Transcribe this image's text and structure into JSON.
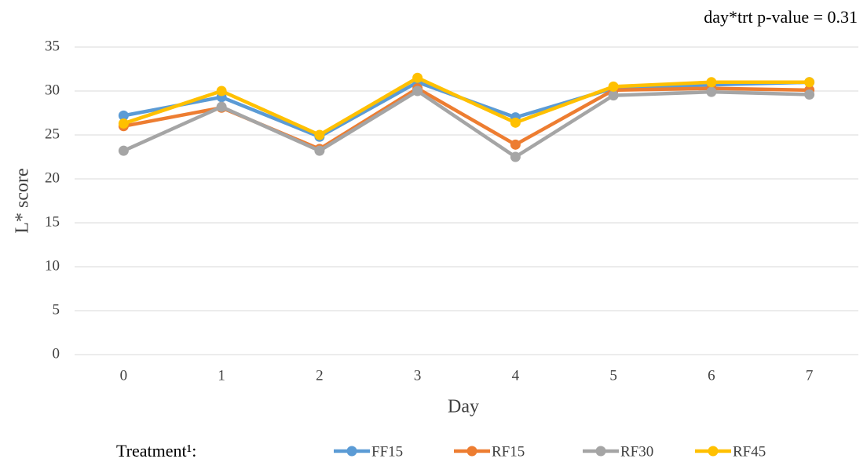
{
  "chart_data": {
    "type": "line",
    "annotation": "day*trt p-value = 0.31",
    "x_label": "Day",
    "y_label": "L* score",
    "legend_title": "Treatment¹:",
    "categories": [
      "0",
      "1",
      "2",
      "3",
      "4",
      "5",
      "6",
      "7"
    ],
    "series": [
      {
        "name": "FF15",
        "color": "#5b9bd5",
        "values": [
          27.2,
          29.3,
          24.8,
          31.0,
          27.0,
          30.3,
          30.7,
          31.0
        ]
      },
      {
        "name": "RF15",
        "color": "#ed7d31",
        "values": [
          26.0,
          28.1,
          23.4,
          30.3,
          23.9,
          30.1,
          30.3,
          30.1
        ]
      },
      {
        "name": "RF30",
        "color": "#a5a5a5",
        "values": [
          23.2,
          28.2,
          23.2,
          30.0,
          22.5,
          29.5,
          29.9,
          29.6
        ]
      },
      {
        "name": "RF45",
        "color": "#ffc000",
        "values": [
          26.3,
          30.0,
          25.0,
          31.5,
          26.4,
          30.5,
          31.0,
          31.0
        ]
      }
    ],
    "ylim": [
      0,
      35
    ],
    "yticks": [
      0,
      5,
      10,
      15,
      20,
      25,
      30,
      35
    ],
    "grid": true,
    "legend": "bottom"
  }
}
